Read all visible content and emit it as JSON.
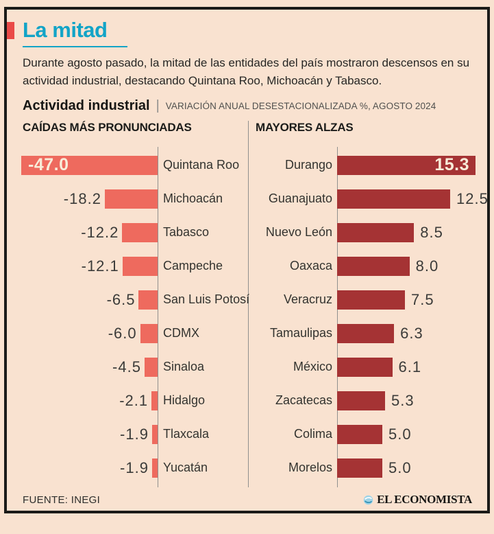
{
  "header": {
    "title": "La mitad",
    "intro": "Durante agosto pasado, la mitad de las entidades del país mostraron descensos en su actividad industrial, destacando Quintana Roo, Michoacán y Tabasco.",
    "kicker_title": "Actividad industrial",
    "kicker_separator": "|",
    "kicker_note": "VARIACIÓN ANUAL DESESTACIONALIZADA %, AGOSTO 2024"
  },
  "colors": {
    "background": "#f9e2d0",
    "title_teal": "#12a4c7",
    "accent_red": "#ea4a47",
    "fall_bar": "#ee6a5e",
    "rise_bar": "#a53334",
    "frame_border": "#1b1b19",
    "inside_value_text": "#f8ecd9"
  },
  "charts": {
    "left": {
      "header": "CAÍDAS MÁS PRONUNCIADAS",
      "rows": [
        {
          "state": "Quintana Roo",
          "value_label": "-47.0"
        },
        {
          "state": "Michoacán",
          "value_label": "-18.2"
        },
        {
          "state": "Tabasco",
          "value_label": "-12.2"
        },
        {
          "state": "Campeche",
          "value_label": "-12.1"
        },
        {
          "state": "San Luis Potosí",
          "value_label": "-6.5"
        },
        {
          "state": "CDMX",
          "value_label": "-6.0"
        },
        {
          "state": "Sinaloa",
          "value_label": "-4.5"
        },
        {
          "state": "Hidalgo",
          "value_label": "-2.1"
        },
        {
          "state": "Tlaxcala",
          "value_label": "-1.9"
        },
        {
          "state": "Yucatán",
          "value_label": "-1.9"
        }
      ]
    },
    "right": {
      "header": "MAYORES ALZAS",
      "rows": [
        {
          "state": "Durango",
          "value_label": "15.3"
        },
        {
          "state": "Guanajuato",
          "value_label": "12.5"
        },
        {
          "state": "Nuevo León",
          "value_label": "8.5"
        },
        {
          "state": "Oaxaca",
          "value_label": "8.0"
        },
        {
          "state": "Veracruz",
          "value_label": "7.5"
        },
        {
          "state": "Tamaulipas",
          "value_label": "6.3"
        },
        {
          "state": "México",
          "value_label": "6.1"
        },
        {
          "state": "Zacatecas",
          "value_label": "5.3"
        },
        {
          "state": "Colima",
          "value_label": "5.0"
        },
        {
          "state": "Morelos",
          "value_label": "5.0"
        }
      ]
    }
  },
  "chart_data": [
    {
      "type": "bar",
      "orientation": "horizontal-left",
      "title": "CAÍDAS MÁS PRONUNCIADAS",
      "subtitle": "Actividad industrial — VARIACIÓN ANUAL DESESTACIONALIZADA %, AGOSTO 2024",
      "categories": [
        "Quintana Roo",
        "Michoacán",
        "Tabasco",
        "Campeche",
        "San Luis Potosí",
        "CDMX",
        "Sinaloa",
        "Hidalgo",
        "Tlaxcala",
        "Yucatán"
      ],
      "values": [
        -47.0,
        -18.2,
        -12.2,
        -12.1,
        -6.5,
        -6.0,
        -4.5,
        -2.1,
        -1.9,
        -1.9
      ],
      "unit": "%",
      "bar_color": "#ee6a5e",
      "xlim": [
        -47.0,
        0
      ],
      "grid": false,
      "value_labels_shown": true
    },
    {
      "type": "bar",
      "orientation": "horizontal-right",
      "title": "MAYORES ALZAS",
      "subtitle": "Actividad industrial — VARIACIÓN ANUAL DESESTACIONALIZADA %, AGOSTO 2024",
      "categories": [
        "Durango",
        "Guanajuato",
        "Nuevo León",
        "Oaxaca",
        "Veracruz",
        "Tamaulipas",
        "México",
        "Zacatecas",
        "Colima",
        "Morelos"
      ],
      "values": [
        15.3,
        12.5,
        8.5,
        8.0,
        7.5,
        6.3,
        6.1,
        5.3,
        5.0,
        5.0
      ],
      "unit": "%",
      "bar_color": "#a53334",
      "xlim": [
        0,
        15.3
      ],
      "grid": false,
      "value_labels_shown": true
    }
  ],
  "footer": {
    "source": "FUENTE: INEGI",
    "brand": "EL ECONOMISTA"
  }
}
